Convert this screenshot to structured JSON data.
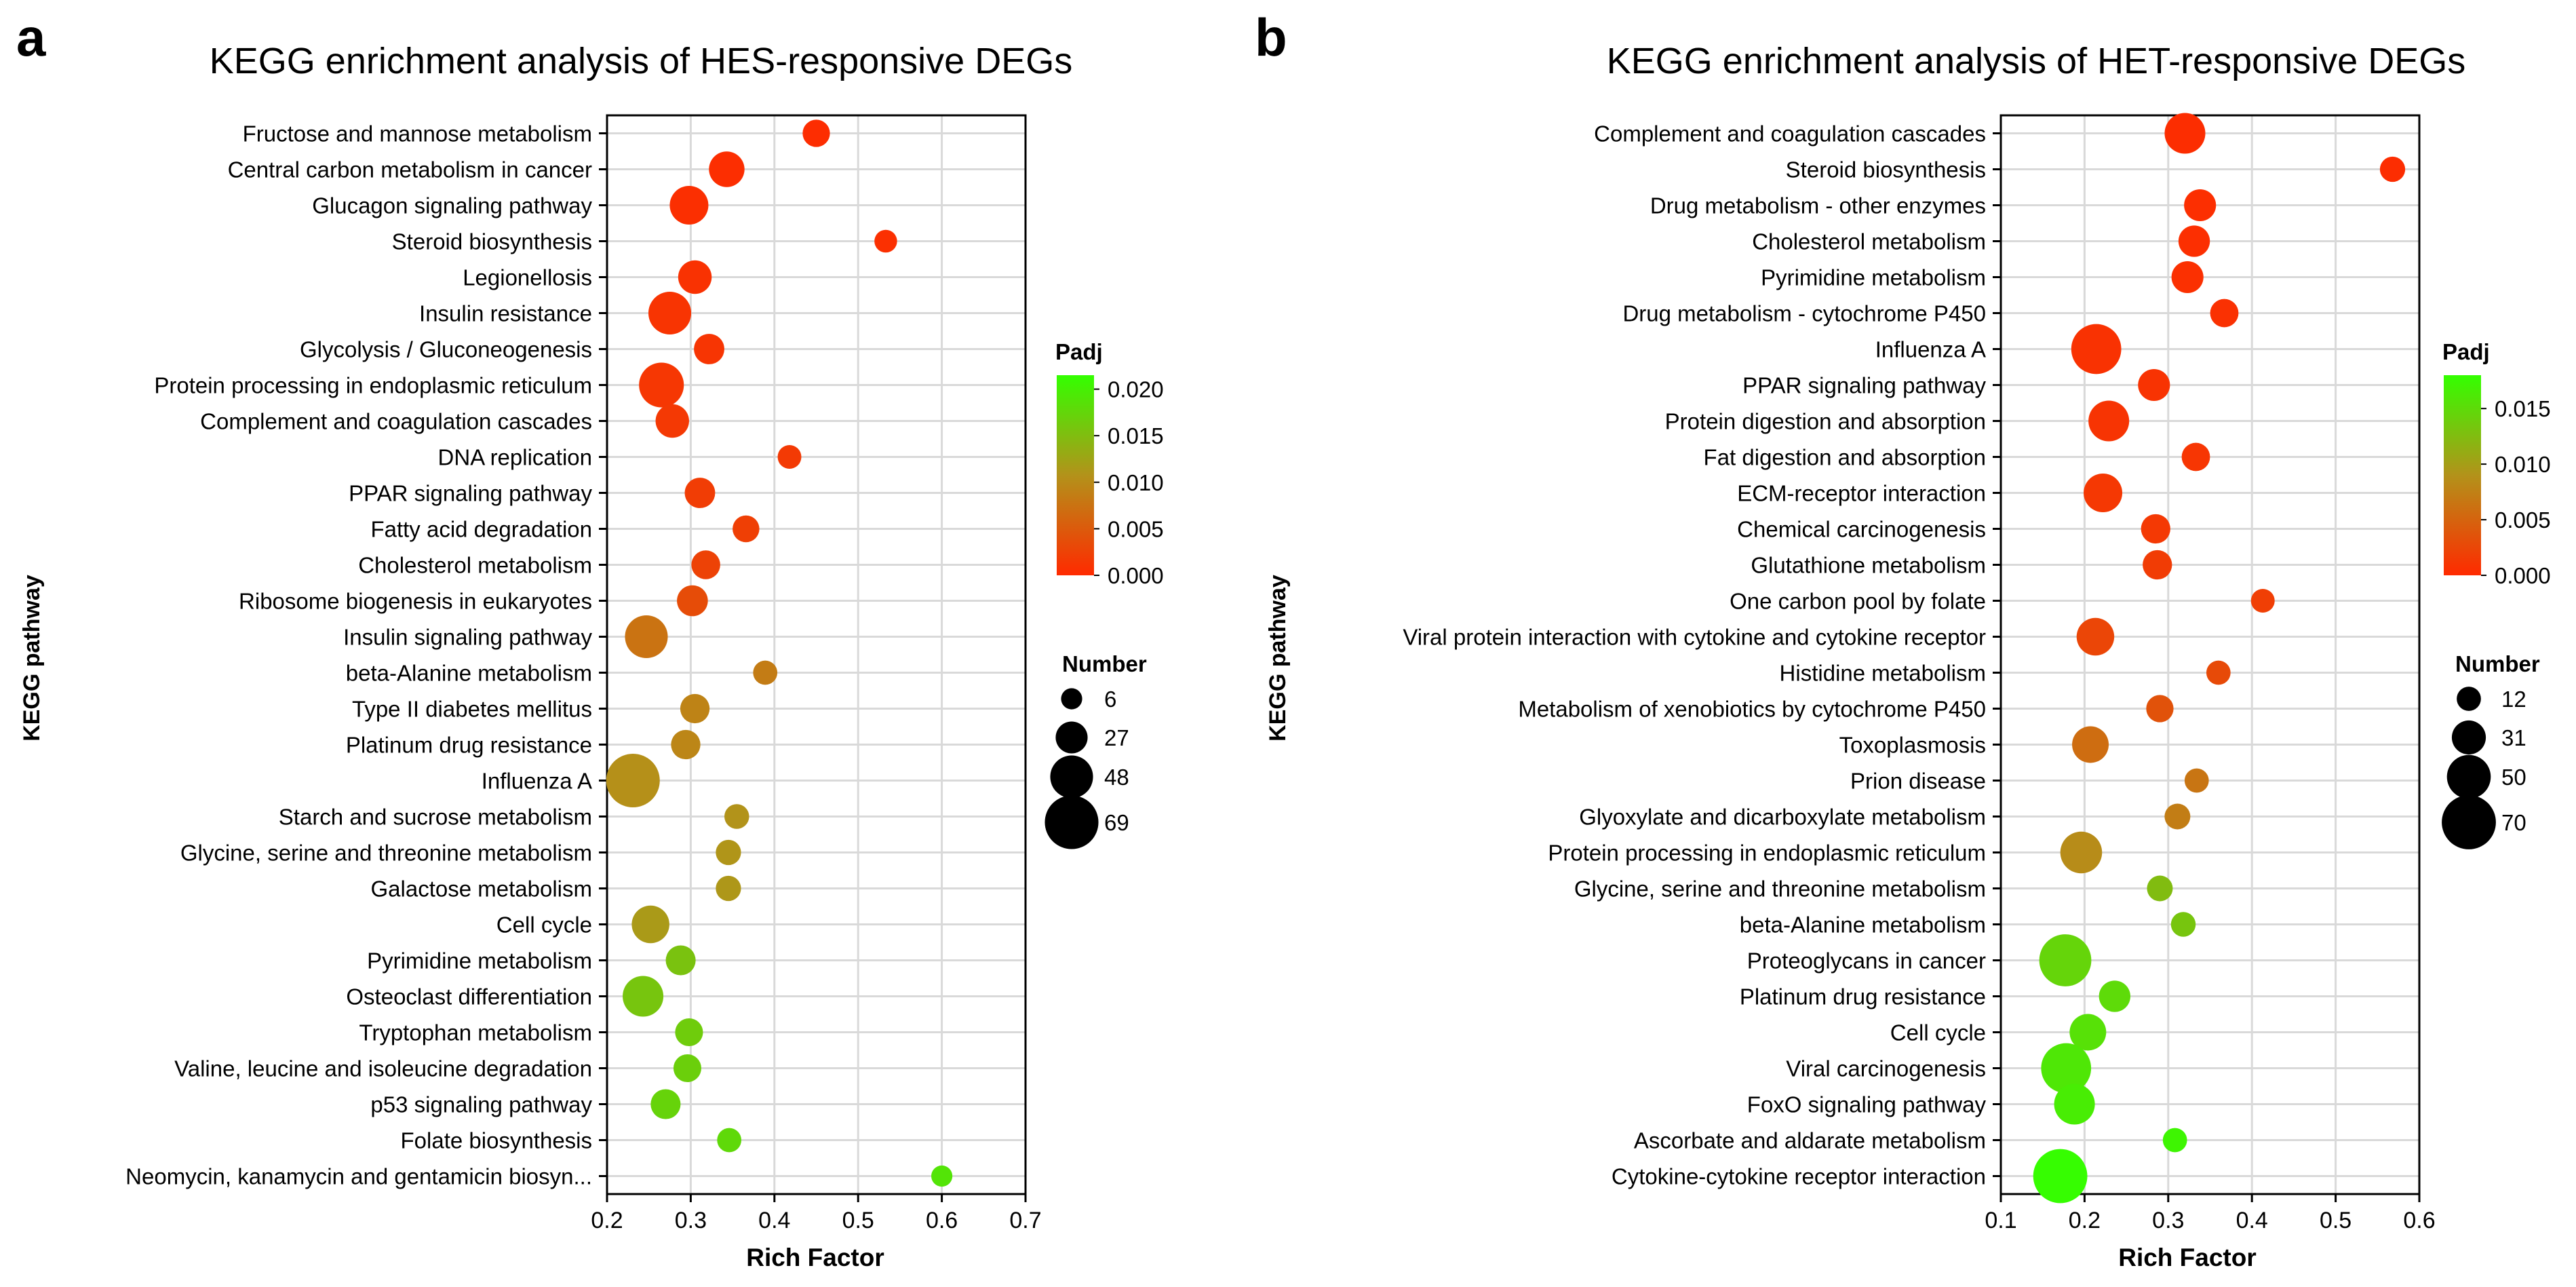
{
  "chart_data": [
    {
      "panel_label": "a",
      "type": "scatter",
      "subtype": "bubble",
      "title": "KEGG enrichment analysis of HES-responsive DEGs",
      "xlabel": "Rich Factor",
      "ylabel": "KEGG pathway",
      "xlim": [
        0.2,
        0.7
      ],
      "xticks": [
        0.2,
        0.3,
        0.4,
        0.5,
        0.6,
        0.7
      ],
      "xtick_labels": [
        "0.2",
        "0.3",
        "0.4",
        "0.5",
        "0.6",
        "0.7"
      ],
      "grid": true,
      "color_legend": {
        "title": "Padj",
        "min": 0,
        "max": 0.0215,
        "ticks": [
          0.02,
          0.015,
          0.01,
          0.005,
          0.0
        ],
        "tick_labels": [
          "0.020",
          "0.015",
          "0.010",
          "0.005",
          "0.000"
        ],
        "low_color": "#ff2a00",
        "mid_color": "#b3921a",
        "high_color": "#33ff00"
      },
      "size_legend": {
        "title": "Number",
        "values": [
          6,
          27,
          48,
          69
        ],
        "labels": [
          "6",
          "27",
          "48",
          "69"
        ]
      },
      "pathways": [
        "Fructose and mannose metabolism",
        "Central carbon metabolism in cancer",
        "Glucagon signaling pathway",
        "Steroid biosynthesis",
        "Legionellosis",
        "Insulin resistance",
        "Glycolysis / Gluconeogenesis",
        "Protein processing in endoplasmic reticulum",
        "Complement and coagulation cascades",
        "DNA replication",
        "PPAR signaling pathway",
        "Fatty acid degradation",
        "Cholesterol metabolism",
        "Ribosome biogenesis in eukaryotes",
        "Insulin signaling pathway",
        "beta-Alanine metabolism",
        "Type II diabetes mellitus",
        "Platinum drug resistance",
        "Influenza A",
        "Starch and sucrose metabolism",
        "Glycine, serine and threonine metabolism",
        "Galactose metabolism",
        "Cell cycle",
        "Pyrimidine metabolism",
        "Osteoclast differentiation",
        "Tryptophan metabolism",
        "Valine, leucine and isoleucine degradation",
        "p53 signaling pathway",
        "Folate biosynthesis",
        "Neomycin, kanamycin and gentamicin biosyn..."
      ],
      "rich_factor": [
        0.45,
        0.343,
        0.298,
        0.533,
        0.305,
        0.275,
        0.322,
        0.265,
        0.278,
        0.418,
        0.311,
        0.366,
        0.318,
        0.302,
        0.247,
        0.389,
        0.305,
        0.294,
        0.231,
        0.355,
        0.345,
        0.345,
        0.252,
        0.288,
        0.243,
        0.298,
        0.296,
        0.27,
        0.346,
        0.6
      ],
      "number": [
        18,
        34,
        40,
        9,
        30,
        48,
        24,
        52,
        30,
        11,
        24,
        17,
        21,
        25,
        48,
        12,
        22,
        22,
        69,
        13,
        14,
        14,
        38,
        23,
        44,
        19,
        19,
        23,
        12,
        6
      ],
      "padj": [
        0.0003,
        0.0004,
        0.0005,
        0.0006,
        0.0008,
        0.001,
        0.0011,
        0.0013,
        0.0015,
        0.0017,
        0.002,
        0.0022,
        0.0025,
        0.0035,
        0.0075,
        0.0085,
        0.0092,
        0.0095,
        0.0105,
        0.0108,
        0.011,
        0.0112,
        0.0115,
        0.0155,
        0.0158,
        0.0165,
        0.0168,
        0.0172,
        0.0178,
        0.0188
      ]
    },
    {
      "panel_label": "b",
      "type": "scatter",
      "subtype": "bubble",
      "title": "KEGG enrichment analysis of HET-responsive DEGs",
      "xlabel": "Rich Factor",
      "ylabel": "KEGG pathway",
      "xlim": [
        0.1,
        0.6
      ],
      "xticks": [
        0.1,
        0.2,
        0.3,
        0.4,
        0.5,
        0.6
      ],
      "xtick_labels": [
        "0.1",
        "0.2",
        "0.3",
        "0.4",
        "0.5",
        "0.6"
      ],
      "grid": true,
      "color_legend": {
        "title": "Padj",
        "min": 0,
        "max": 0.018,
        "ticks": [
          0.015,
          0.01,
          0.005,
          0.0
        ],
        "tick_labels": [
          "0.015",
          "0.010",
          "0.005",
          "0.000"
        ],
        "low_color": "#ff2a00",
        "mid_color": "#b3921a",
        "high_color": "#33ff00"
      },
      "size_legend": {
        "title": "Number",
        "values": [
          12,
          31,
          50,
          70
        ],
        "labels": [
          "12",
          "31",
          "50",
          "70"
        ]
      },
      "pathways": [
        "Complement and coagulation cascades",
        "Steroid biosynthesis",
        "Drug metabolism - other enzymes",
        "Cholesterol metabolism",
        "Pyrimidine metabolism",
        "Drug metabolism - cytochrome P450",
        "Influenza A",
        "PPAR signaling pathway",
        "Protein digestion and absorption",
        "Fat digestion and absorption",
        "ECM-receptor interaction",
        "Chemical carcinogenesis",
        "Glutathione metabolism",
        "One carbon pool by folate",
        "Viral protein interaction with cytokine and cytokine receptor",
        "Histidine metabolism",
        "Metabolism of xenobiotics by cytochrome P450",
        "Toxoplasmosis",
        "Prion disease",
        "Glyoxylate and dicarboxylate metabolism",
        "Protein processing in endoplasmic reticulum",
        "Glycine, serine and threonine metabolism",
        "beta-Alanine metabolism",
        "Proteoglycans in cancer",
        "Platinum drug resistance",
        "Cell cycle",
        "Viral carcinogenesis",
        "FoxO signaling pathway",
        "Ascorbate and aldarate metabolism",
        "Cytokine-cytokine receptor interaction"
      ],
      "rich_factor": [
        0.32,
        0.568,
        0.338,
        0.331,
        0.323,
        0.367,
        0.214,
        0.283,
        0.229,
        0.333,
        0.222,
        0.285,
        0.287,
        0.413,
        0.213,
        0.36,
        0.29,
        0.207,
        0.334,
        0.311,
        0.196,
        0.29,
        0.318,
        0.177,
        0.236,
        0.204,
        0.178,
        0.188,
        0.308,
        0.171
      ],
      "number": [
        44,
        14,
        27,
        26,
        27,
        20,
        62,
        27,
        44,
        20,
        40,
        22,
        22,
        11,
        38,
        12,
        18,
        36,
        12,
        15,
        46,
        15,
        13,
        66,
        26,
        36,
        62,
        44,
        12,
        70
      ],
      "padj": [
        0.0003,
        0.0003,
        0.0004,
        0.0004,
        0.0005,
        0.0006,
        0.0007,
        0.0008,
        0.0009,
        0.001,
        0.0012,
        0.0013,
        0.0016,
        0.0018,
        0.0024,
        0.0028,
        0.0035,
        0.0058,
        0.0065,
        0.0072,
        0.0085,
        0.0125,
        0.0132,
        0.0145,
        0.015,
        0.0155,
        0.016,
        0.0165,
        0.0172,
        0.0178
      ]
    }
  ]
}
